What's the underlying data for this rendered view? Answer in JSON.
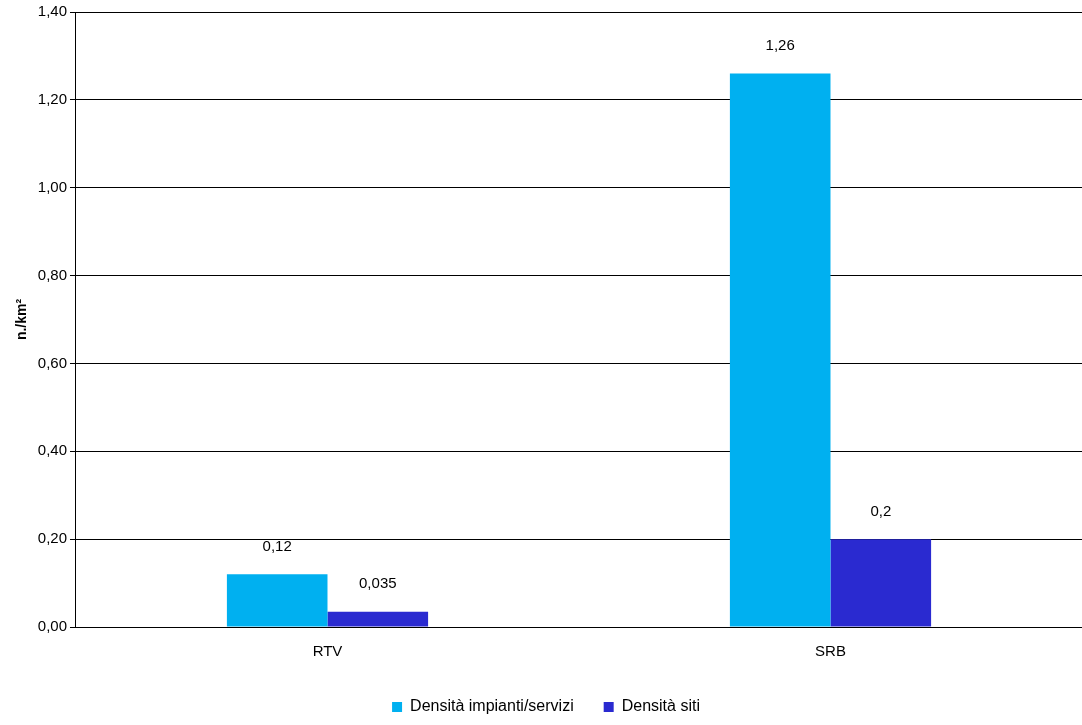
{
  "chart_data": {
    "type": "bar",
    "ylabel": "n./km²",
    "categories": [
      "RTV",
      "SRB"
    ],
    "series": [
      {
        "name": "Densità impianti/servizi",
        "color": "#00b0f0",
        "values": [
          0.12,
          1.26
        ],
        "value_labels": [
          "0,12",
          "1,26"
        ]
      },
      {
        "name": "Densità siti",
        "color": "#2a2ad0",
        "values": [
          0.035,
          0.2
        ],
        "value_labels": [
          "0,035",
          "0,2"
        ]
      }
    ],
    "ylim": [
      0,
      1.4
    ],
    "yticks": [
      {
        "value": 0,
        "label": "0,00"
      },
      {
        "value": 0.2,
        "label": "0,20"
      },
      {
        "value": 0.4,
        "label": "0,40"
      },
      {
        "value": 0.6,
        "label": "0,60"
      },
      {
        "value": 0.8,
        "label": "0,80"
      },
      {
        "value": 1.0,
        "label": "1,00"
      },
      {
        "value": 1.2,
        "label": "1,20"
      },
      {
        "value": 1.4,
        "label": "1,40"
      }
    ],
    "grid": "y",
    "legend": "bottom"
  }
}
